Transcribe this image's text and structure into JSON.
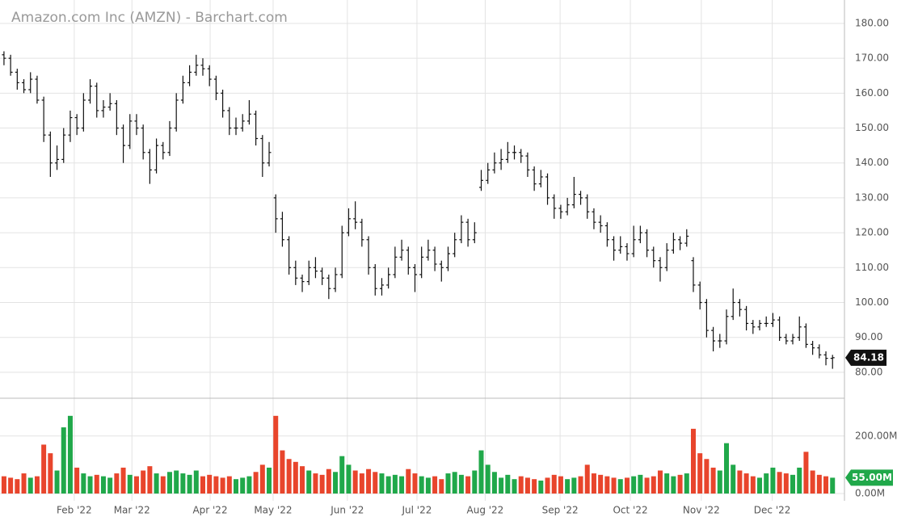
{
  "chart_data": {
    "type": "ohlc",
    "title": "Amazon.com Inc (AMZN) - Barchart.com",
    "xlim": [
      -0.6,
      126.8
    ],
    "xticks": [
      {
        "value": 10.6,
        "label": "Feb '22"
      },
      {
        "value": 19.3,
        "label": "Mar '22"
      },
      {
        "value": 31.1,
        "label": "Apr '22"
      },
      {
        "value": 40.6,
        "label": "May '22"
      },
      {
        "value": 51.8,
        "label": "Jun '22"
      },
      {
        "value": 62.3,
        "label": "Jul '22"
      },
      {
        "value": 72.6,
        "label": "Aug '22"
      },
      {
        "value": 83.9,
        "label": "Sep '22"
      },
      {
        "value": 94.5,
        "label": "Oct '22"
      },
      {
        "value": 105.2,
        "label": "Nov '22"
      },
      {
        "value": 115.9,
        "label": "Dec '22"
      }
    ],
    "ylim": [
      72.8,
      186.7
    ],
    "yticks": [
      {
        "value": 80,
        "label": "80.00"
      },
      {
        "value": 90,
        "label": "90.00"
      },
      {
        "value": 100,
        "label": "100.00"
      },
      {
        "value": 110,
        "label": "110.00"
      },
      {
        "value": 120,
        "label": "120.00"
      },
      {
        "value": 130,
        "label": "130.00"
      },
      {
        "value": 140,
        "label": "140.00"
      },
      {
        "value": 150,
        "label": "150.00"
      },
      {
        "value": 160,
        "label": "160.00"
      },
      {
        "value": 170,
        "label": "170.00"
      },
      {
        "value": 180,
        "label": "180.00"
      }
    ],
    "vol_lim": [
      0,
      320
    ],
    "vol_ticks": [
      {
        "value": 0,
        "label": "0.00M"
      },
      {
        "value": 200,
        "label": "200.00M"
      }
    ],
    "grid": true,
    "bar_color": "#111111",
    "up_color": "#20a84a",
    "down_color": "#e8452c",
    "last_price": 84.18,
    "last_volume": 55,
    "last_volume_label": "55.00M",
    "ohlc": [
      [
        171,
        172,
        168,
        170
      ],
      [
        170,
        171,
        165,
        166
      ],
      [
        166,
        167,
        161,
        163
      ],
      [
        163,
        164,
        160,
        161
      ],
      [
        161,
        166,
        160,
        164
      ],
      [
        164,
        165,
        157,
        158
      ],
      [
        158,
        159,
        146,
        148
      ],
      [
        148,
        149,
        136,
        140
      ],
      [
        140,
        145,
        138,
        141
      ],
      [
        141,
        150,
        140,
        148
      ],
      [
        148,
        155,
        146,
        153
      ],
      [
        153,
        154,
        148,
        150
      ],
      [
        150,
        160,
        149,
        158
      ],
      [
        158,
        164,
        157,
        162
      ],
      [
        162,
        163,
        153,
        155
      ],
      [
        155,
        158,
        153,
        156
      ],
      [
        156,
        160,
        155,
        157
      ],
      [
        157,
        158,
        148,
        150
      ],
      [
        150,
        151,
        140,
        145
      ],
      [
        145,
        154,
        144,
        152
      ],
      [
        152,
        154,
        148,
        150
      ],
      [
        150,
        151,
        141,
        143
      ],
      [
        143,
        144,
        134,
        138
      ],
      [
        138,
        147,
        137,
        145
      ],
      [
        145,
        146,
        141,
        143
      ],
      [
        143,
        152,
        142,
        150
      ],
      [
        150,
        160,
        149,
        158
      ],
      [
        158,
        165,
        157,
        163
      ],
      [
        163,
        168,
        162,
        166
      ],
      [
        166,
        171,
        165,
        168
      ],
      [
        168,
        170,
        165,
        167
      ],
      [
        167,
        168,
        162,
        164
      ],
      [
        164,
        165,
        158,
        160
      ],
      [
        160,
        161,
        153,
        155
      ],
      [
        155,
        156,
        148,
        150
      ],
      [
        150,
        153,
        148,
        150
      ],
      [
        150,
        154,
        149,
        152
      ],
      [
        152,
        158,
        151,
        154
      ],
      [
        154,
        155,
        145,
        147
      ],
      [
        147,
        148,
        136,
        140
      ],
      [
        140,
        146,
        139,
        143
      ],
      [
        130,
        131,
        120,
        124
      ],
      [
        124,
        126,
        116,
        118
      ],
      [
        118,
        119,
        108,
        110
      ],
      [
        110,
        112,
        105,
        107
      ],
      [
        107,
        108,
        103,
        106
      ],
      [
        106,
        112,
        105,
        110
      ],
      [
        110,
        113,
        107,
        109
      ],
      [
        109,
        110,
        105,
        107
      ],
      [
        107,
        108,
        101,
        104
      ],
      [
        104,
        110,
        103,
        108
      ],
      [
        108,
        122,
        107,
        120
      ],
      [
        120,
        127,
        119,
        124
      ],
      [
        124,
        129,
        121,
        123
      ],
      [
        123,
        124,
        116,
        118
      ],
      [
        118,
        119,
        108,
        110
      ],
      [
        110,
        111,
        102,
        104
      ],
      [
        104,
        107,
        102,
        105
      ],
      [
        105,
        110,
        104,
        108
      ],
      [
        108,
        116,
        107,
        113
      ],
      [
        113,
        118,
        112,
        115
      ],
      [
        115,
        116,
        108,
        110
      ],
      [
        110,
        111,
        103,
        108
      ],
      [
        108,
        116,
        107,
        113
      ],
      [
        113,
        118,
        112,
        115
      ],
      [
        115,
        116,
        109,
        111
      ],
      [
        111,
        112,
        106,
        110
      ],
      [
        110,
        116,
        109,
        114
      ],
      [
        114,
        120,
        113,
        118
      ],
      [
        118,
        125,
        117,
        123
      ],
      [
        123,
        124,
        116,
        118
      ],
      [
        118,
        123,
        117,
        120
      ],
      [
        133,
        138,
        132,
        135
      ],
      [
        135,
        140,
        134,
        138
      ],
      [
        138,
        143,
        137,
        140
      ],
      [
        140,
        144,
        138,
        141
      ],
      [
        141,
        146,
        140,
        143
      ],
      [
        143,
        145,
        141,
        143
      ],
      [
        143,
        144,
        140,
        142
      ],
      [
        142,
        143,
        136,
        138
      ],
      [
        138,
        139,
        132,
        134
      ],
      [
        134,
        138,
        133,
        136
      ],
      [
        136,
        137,
        128,
        130
      ],
      [
        130,
        131,
        124,
        127
      ],
      [
        127,
        128,
        124,
        126
      ],
      [
        126,
        130,
        125,
        128
      ],
      [
        128,
        136,
        127,
        131
      ],
      [
        131,
        132,
        128,
        130
      ],
      [
        130,
        131,
        124,
        126
      ],
      [
        126,
        127,
        121,
        123
      ],
      [
        123,
        125,
        120,
        122
      ],
      [
        122,
        123,
        116,
        118
      ],
      [
        118,
        119,
        112,
        115
      ],
      [
        115,
        119,
        114,
        116
      ],
      [
        116,
        117,
        112,
        114
      ],
      [
        114,
        122,
        113,
        118
      ],
      [
        118,
        122,
        117,
        120
      ],
      [
        120,
        121,
        113,
        115
      ],
      [
        115,
        116,
        110,
        112
      ],
      [
        112,
        113,
        106,
        110
      ],
      [
        110,
        117,
        109,
        115
      ],
      [
        115,
        120,
        114,
        118
      ],
      [
        118,
        119,
        115,
        117
      ],
      [
        117,
        121,
        116,
        119
      ],
      [
        112,
        113,
        103,
        105
      ],
      [
        105,
        106,
        98,
        100
      ],
      [
        100,
        101,
        90,
        92
      ],
      [
        92,
        93,
        86,
        89
      ],
      [
        89,
        91,
        87,
        89
      ],
      [
        89,
        98,
        88,
        96
      ],
      [
        96,
        104,
        95,
        100
      ],
      [
        100,
        101,
        96,
        98
      ],
      [
        98,
        99,
        92,
        94
      ],
      [
        94,
        95,
        91,
        93
      ],
      [
        93,
        95,
        92,
        94
      ],
      [
        94,
        96,
        93,
        94
      ],
      [
        94,
        97,
        93,
        95
      ],
      [
        95,
        96,
        89,
        90
      ],
      [
        90,
        91,
        88,
        89
      ],
      [
        89,
        91,
        88,
        90
      ],
      [
        90,
        96,
        89,
        93
      ],
      [
        93,
        94,
        87,
        88
      ],
      [
        88,
        89,
        85,
        87
      ],
      [
        87,
        88,
        84,
        85
      ],
      [
        85,
        86,
        82,
        84
      ],
      [
        84,
        85,
        81,
        84.18
      ]
    ],
    "volume": [
      60,
      55,
      50,
      70,
      55,
      60,
      170,
      140,
      80,
      230,
      270,
      90,
      70,
      60,
      65,
      60,
      55,
      70,
      90,
      65,
      60,
      80,
      95,
      70,
      60,
      75,
      80,
      70,
      65,
      80,
      60,
      65,
      60,
      55,
      60,
      50,
      55,
      60,
      75,
      100,
      90,
      270,
      150,
      120,
      110,
      95,
      80,
      70,
      65,
      85,
      75,
      130,
      100,
      80,
      70,
      85,
      75,
      70,
      60,
      65,
      60,
      85,
      70,
      60,
      55,
      60,
      50,
      70,
      75,
      65,
      60,
      80,
      150,
      100,
      75,
      55,
      65,
      50,
      60,
      55,
      50,
      45,
      55,
      65,
      60,
      50,
      55,
      60,
      100,
      70,
      65,
      60,
      55,
      50,
      55,
      60,
      65,
      55,
      60,
      80,
      70,
      60,
      65,
      70,
      225,
      140,
      120,
      90,
      80,
      175,
      100,
      80,
      70,
      60,
      55,
      70,
      90,
      75,
      70,
      65,
      90,
      145,
      80,
      65,
      60,
      55
    ]
  }
}
